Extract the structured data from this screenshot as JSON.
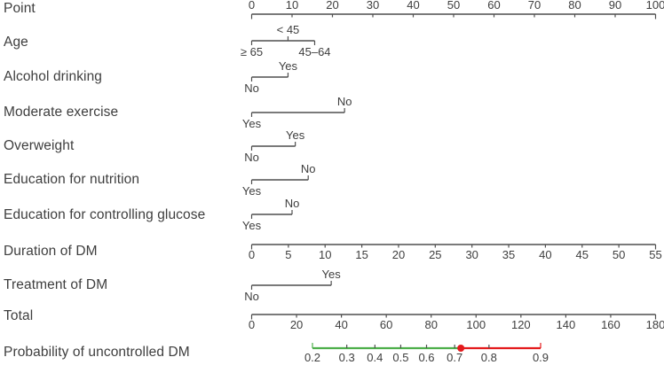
{
  "colors": {
    "green": "#4daf4a",
    "red": "#e41a1c",
    "axis": "#4f4f4f",
    "text": "#3e3e3e"
  },
  "chart_data": {
    "type": "nomogram",
    "points_axis_range": [
      0,
      100
    ],
    "rows": [
      {
        "label": "Point",
        "kind": "axis",
        "min": 0,
        "max": 100,
        "step": 10,
        "ticks": [
          0,
          10,
          20,
          30,
          40,
          50,
          60,
          70,
          80,
          90,
          100
        ],
        "tick_labels_position": "above"
      },
      {
        "label": "Age",
        "kind": "categorical",
        "categories": [
          {
            "label": "≥ 65",
            "points": 0,
            "side": "below"
          },
          {
            "label": "< 45",
            "points": 9,
            "side": "above"
          },
          {
            "label": "45–64",
            "points": 15.6,
            "side": "below"
          }
        ]
      },
      {
        "label": "Alcohol drinking",
        "kind": "categorical",
        "categories": [
          {
            "label": "No",
            "points": 0,
            "side": "below"
          },
          {
            "label": "Yes",
            "points": 9,
            "side": "above"
          }
        ]
      },
      {
        "label": "Moderate exercise",
        "kind": "categorical",
        "categories": [
          {
            "label": "Yes",
            "points": 0,
            "side": "below"
          },
          {
            "label": "No",
            "points": 23,
            "side": "above"
          }
        ]
      },
      {
        "label": "Overweight",
        "kind": "categorical",
        "categories": [
          {
            "label": "No",
            "points": 0,
            "side": "below"
          },
          {
            "label": "Yes",
            "points": 10.8,
            "side": "above"
          }
        ]
      },
      {
        "label": "Education for nutrition",
        "kind": "categorical",
        "categories": [
          {
            "label": "Yes",
            "points": 0,
            "side": "below"
          },
          {
            "label": "No",
            "points": 14,
            "side": "above"
          }
        ]
      },
      {
        "label": "Education for controlling glucose",
        "kind": "categorical",
        "categories": [
          {
            "label": "Yes",
            "points": 0,
            "side": "below"
          },
          {
            "label": "No",
            "points": 10,
            "side": "above"
          }
        ]
      },
      {
        "label": "Duration of DM",
        "kind": "axis",
        "min": 0,
        "max": 55,
        "step": 5,
        "ticks": [
          0,
          5,
          10,
          15,
          20,
          25,
          30,
          35,
          40,
          45,
          50,
          55
        ],
        "tick_labels_position": "below"
      },
      {
        "label": "Treatment of DM",
        "kind": "categorical",
        "categories": [
          {
            "label": "No",
            "points": 0,
            "side": "below"
          },
          {
            "label": "Yes",
            "points": 19.7,
            "side": "above"
          }
        ]
      },
      {
        "label": "Total",
        "kind": "axis",
        "min": 0,
        "max": 180,
        "step": 20,
        "ticks": [
          0,
          20,
          40,
          60,
          80,
          100,
          120,
          140,
          160,
          180
        ],
        "tick_labels_position": "below"
      },
      {
        "label": "Probability of uncontrolled DM",
        "kind": "probability",
        "scale": "logit",
        "min": 0.2,
        "max": 0.9,
        "ticks": [
          0.2,
          0.3,
          0.4,
          0.5,
          0.6,
          0.7,
          0.8,
          0.9
        ],
        "marker": 0.72,
        "segments": [
          {
            "from": 0.2,
            "to": 0.72,
            "color": "green"
          },
          {
            "from": 0.72,
            "to": 0.9,
            "color": "red"
          }
        ]
      }
    ]
  }
}
